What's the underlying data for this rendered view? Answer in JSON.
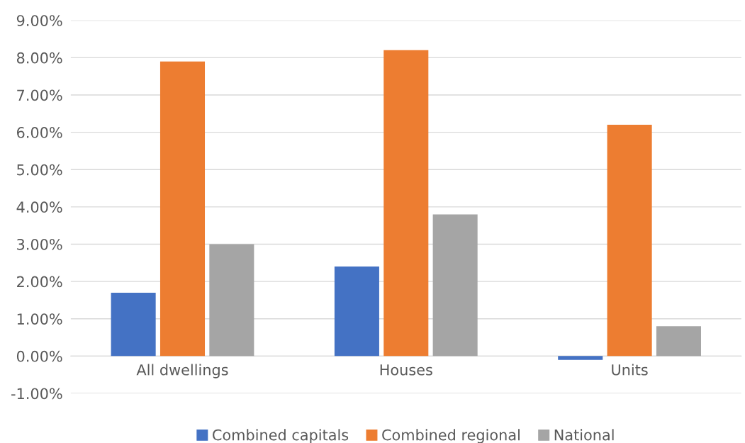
{
  "chart_data": {
    "type": "bar",
    "categories": [
      "All dwellings",
      "Houses",
      "Units"
    ],
    "series": [
      {
        "name": "Combined capitals",
        "color": "#4472c4",
        "values": [
          1.7,
          2.4,
          -0.1
        ]
      },
      {
        "name": "Combined regional",
        "color": "#ed7d31",
        "values": [
          7.9,
          8.2,
          6.2
        ]
      },
      {
        "name": "National",
        "color": "#a5a5a5",
        "values": [
          3.0,
          3.8,
          0.8
        ]
      }
    ],
    "ylim": [
      -1,
      9
    ],
    "yticks": [
      {
        "value": -1,
        "label": "-1.00%"
      },
      {
        "value": 0,
        "label": "0.00%"
      },
      {
        "value": 1,
        "label": "1.00%"
      },
      {
        "value": 2,
        "label": "2.00%"
      },
      {
        "value": 3,
        "label": "3.00%"
      },
      {
        "value": 4,
        "label": "4.00%"
      },
      {
        "value": 5,
        "label": "5.00%"
      },
      {
        "value": 6,
        "label": "6.00%"
      },
      {
        "value": 7,
        "label": "7.00%"
      },
      {
        "value": 8,
        "label": "8.00%"
      },
      {
        "value": 9,
        "label": "9.00%"
      }
    ],
    "grid": "y",
    "legend": "bottom"
  }
}
